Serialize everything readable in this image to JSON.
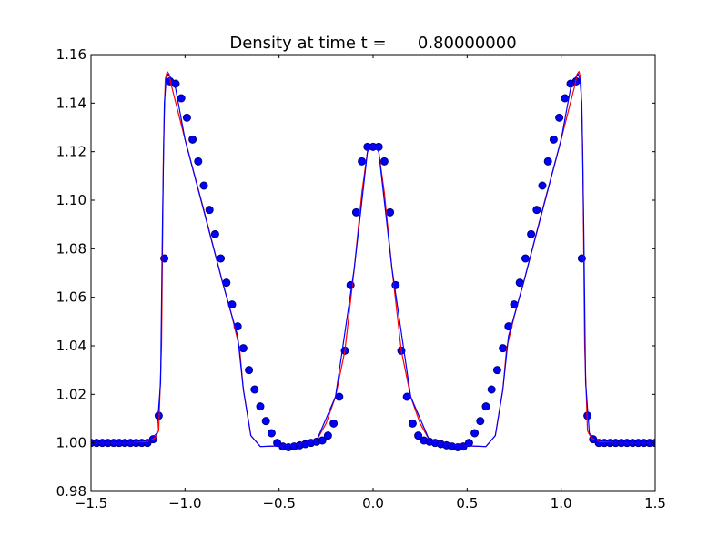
{
  "chart_data": {
    "type": "line",
    "title": "Density at time t =      0.80000000",
    "xlabel": "",
    "ylabel": "",
    "xlim": [
      -1.5,
      1.5
    ],
    "ylim": [
      0.98,
      1.16
    ],
    "xticks": [
      -1.5,
      -1.0,
      -0.5,
      0.0,
      0.5,
      1.0,
      1.5
    ],
    "xtick_labels": [
      "−1.5",
      "−1.0",
      "−0.5",
      "0.0",
      "0.5",
      "1.0",
      "1.5"
    ],
    "yticks": [
      0.98,
      1.0,
      1.02,
      1.04,
      1.06,
      1.08,
      1.1,
      1.12,
      1.14,
      1.16
    ],
    "ytick_labels": [
      "0.98",
      "1.00",
      "1.02",
      "1.04",
      "1.06",
      "1.08",
      "1.10",
      "1.12",
      "1.14",
      "1.16"
    ],
    "grid": false,
    "series": [
      {
        "style": "markers",
        "color": "#0000ff",
        "edge_color": "#00007f",
        "x": [
          -1.5,
          -1.47,
          -1.44,
          -1.41,
          -1.38,
          -1.35,
          -1.32,
          -1.29,
          -1.26,
          -1.23,
          -1.2,
          -1.17,
          -1.14,
          -1.11,
          -1.08,
          -1.05,
          -1.02,
          -0.99,
          -0.96,
          -0.93,
          -0.9,
          -0.87,
          -0.84,
          -0.81,
          -0.78,
          -0.75,
          -0.72,
          -0.69,
          -0.66,
          -0.63,
          -0.6,
          -0.57,
          -0.54,
          -0.51,
          -0.48,
          -0.45,
          -0.42,
          -0.39,
          -0.36,
          -0.33,
          -0.3,
          -0.27,
          -0.24,
          -0.21,
          -0.18,
          -0.15,
          -0.12,
          -0.09,
          -0.06,
          -0.03,
          0.0,
          0.03,
          0.06,
          0.09,
          0.12,
          0.15,
          0.18,
          0.21,
          0.24,
          0.27,
          0.3,
          0.33,
          0.36,
          0.39,
          0.42,
          0.45,
          0.48,
          0.51,
          0.54,
          0.57,
          0.6,
          0.63,
          0.66,
          0.69,
          0.72,
          0.75,
          0.78,
          0.81,
          0.84,
          0.87,
          0.9,
          0.93,
          0.96,
          0.99,
          1.02,
          1.05,
          1.08,
          1.11,
          1.14,
          1.17,
          1.2,
          1.23,
          1.26,
          1.29,
          1.32,
          1.35,
          1.38,
          1.41,
          1.44,
          1.47,
          1.5
        ],
        "y": [
          1.0,
          1.0,
          1.0,
          1.0,
          1.0,
          1.0,
          1.0,
          1.0,
          1.0,
          1.0,
          1.0,
          1.0015,
          1.0112,
          1.076,
          1.149,
          1.148,
          1.142,
          1.134,
          1.125,
          1.116,
          1.106,
          1.096,
          1.086,
          1.076,
          1.066,
          1.057,
          1.048,
          1.039,
          1.03,
          1.022,
          1.015,
          1.009,
          1.004,
          1.0,
          0.9985,
          0.9982,
          0.9985,
          0.999,
          0.9995,
          1.0,
          1.0005,
          1.001,
          1.003,
          1.008,
          1.019,
          1.038,
          1.065,
          1.095,
          1.116,
          1.122,
          1.122,
          1.122,
          1.116,
          1.095,
          1.065,
          1.038,
          1.019,
          1.008,
          1.003,
          1.001,
          1.0005,
          1.0,
          0.9995,
          0.999,
          0.9985,
          0.9982,
          0.9985,
          1.0,
          1.004,
          1.009,
          1.015,
          1.022,
          1.03,
          1.039,
          1.048,
          1.057,
          1.066,
          1.076,
          1.086,
          1.096,
          1.106,
          1.116,
          1.125,
          1.134,
          1.142,
          1.148,
          1.149,
          1.076,
          1.0112,
          1.0015,
          1.0,
          1.0,
          1.0,
          1.0,
          1.0,
          1.0,
          1.0,
          1.0,
          1.0,
          1.0,
          1.0
        ]
      },
      {
        "style": "line",
        "color": "#ff0000",
        "x": [
          -1.5,
          -1.3,
          -1.2,
          -1.16,
          -1.14,
          -1.125,
          -1.115,
          -1.105,
          -1.095,
          -1.085,
          -1.075,
          -1.0,
          -0.9,
          -0.8,
          -0.75,
          -0.71,
          -0.69,
          -0.65,
          -0.6,
          -0.5,
          -0.4,
          -0.3,
          -0.25,
          -0.2,
          -0.15,
          -0.1,
          -0.06,
          -0.03,
          0.0,
          0.03,
          0.06,
          0.1,
          0.15,
          0.2,
          0.25,
          0.3,
          0.4,
          0.5,
          0.6,
          0.65,
          0.69,
          0.71,
          0.75,
          0.8,
          0.9,
          1.0,
          1.075,
          1.085,
          1.095,
          1.105,
          1.115,
          1.125,
          1.14,
          1.16,
          1.2,
          1.3,
          1.5
        ],
        "y": [
          1.0,
          1.0,
          1.0005,
          1.002,
          1.005,
          1.04,
          1.12,
          1.15,
          1.153,
          1.152,
          1.148,
          1.125,
          1.096,
          1.066,
          1.052,
          1.039,
          1.022,
          1.003,
          0.9985,
          0.9988,
          0.9995,
          1.001,
          1.008,
          1.019,
          1.038,
          1.072,
          1.103,
          1.12,
          1.123,
          1.12,
          1.103,
          1.072,
          1.038,
          1.019,
          1.008,
          1.001,
          0.9995,
          0.9988,
          0.9985,
          1.003,
          1.022,
          1.039,
          1.052,
          1.066,
          1.096,
          1.125,
          1.148,
          1.152,
          1.153,
          1.15,
          1.12,
          1.04,
          1.005,
          1.002,
          1.0005,
          1.0,
          1.0
        ]
      },
      {
        "style": "line",
        "color": "#0000ff",
        "x": [
          -1.5,
          -1.2,
          -1.15,
          -1.13,
          -1.12,
          -1.11,
          -1.1,
          -1.09,
          -1.08,
          -1.05,
          -1.0,
          -0.8,
          -0.72,
          -0.69,
          -0.65,
          -0.6,
          -0.5,
          -0.4,
          -0.3,
          -0.2,
          -0.1,
          -0.03,
          0.0,
          0.03,
          0.1,
          0.2,
          0.3,
          0.4,
          0.5,
          0.6,
          0.65,
          0.69,
          0.72,
          0.8,
          1.0,
          1.05,
          1.08,
          1.09,
          1.1,
          1.11,
          1.12,
          1.13,
          1.15,
          1.2,
          1.5
        ],
        "y": [
          1.0,
          1.0,
          1.004,
          1.025,
          1.09,
          1.14,
          1.15,
          1.152,
          1.151,
          1.146,
          1.125,
          1.066,
          1.044,
          1.022,
          1.003,
          0.9985,
          0.9988,
          0.9995,
          1.001,
          1.019,
          1.072,
          1.12,
          1.123,
          1.12,
          1.072,
          1.019,
          1.001,
          0.9995,
          0.9988,
          0.9985,
          1.003,
          1.022,
          1.044,
          1.066,
          1.125,
          1.146,
          1.151,
          1.152,
          1.15,
          1.14,
          1.09,
          1.025,
          1.004,
          1.0,
          1.0
        ]
      }
    ]
  }
}
